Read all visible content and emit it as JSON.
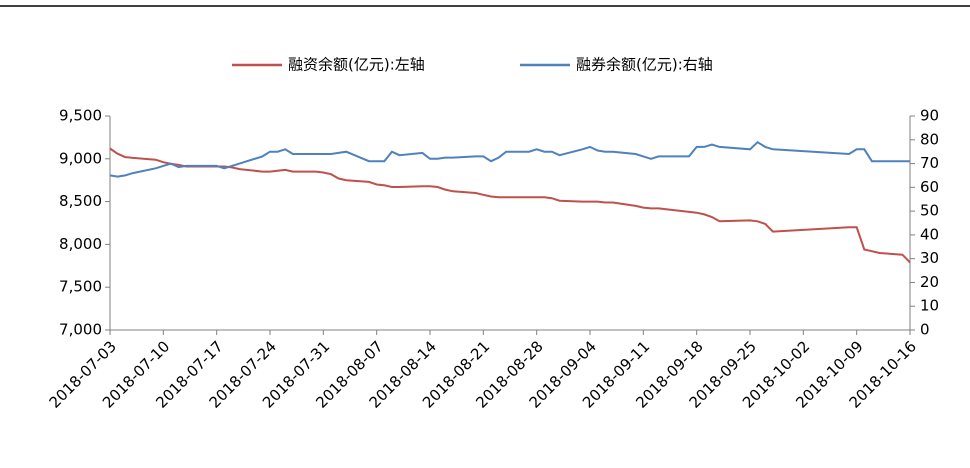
{
  "chart_data": {
    "type": "line",
    "x": [
      "2018-07-03",
      "2018-07-04",
      "2018-07-05",
      "2018-07-06",
      "2018-07-09",
      "2018-07-10",
      "2018-07-11",
      "2018-07-12",
      "2018-07-13",
      "2018-07-16",
      "2018-07-17",
      "2018-07-18",
      "2018-07-19",
      "2018-07-20",
      "2018-07-23",
      "2018-07-24",
      "2018-07-25",
      "2018-07-26",
      "2018-07-27",
      "2018-07-30",
      "2018-07-31",
      "2018-08-01",
      "2018-08-02",
      "2018-08-03",
      "2018-08-06",
      "2018-08-07",
      "2018-08-08",
      "2018-08-09",
      "2018-08-10",
      "2018-08-13",
      "2018-08-14",
      "2018-08-15",
      "2018-08-16",
      "2018-08-17",
      "2018-08-20",
      "2018-08-21",
      "2018-08-22",
      "2018-08-23",
      "2018-08-24",
      "2018-08-27",
      "2018-08-28",
      "2018-08-29",
      "2018-08-30",
      "2018-08-31",
      "2018-09-03",
      "2018-09-04",
      "2018-09-05",
      "2018-09-06",
      "2018-09-07",
      "2018-09-10",
      "2018-09-11",
      "2018-09-12",
      "2018-09-13",
      "2018-09-14",
      "2018-09-17",
      "2018-09-18",
      "2018-09-19",
      "2018-09-20",
      "2018-09-21",
      "2018-09-25",
      "2018-09-26",
      "2018-09-27",
      "2018-09-28",
      "2018-10-08",
      "2018-10-09",
      "2018-10-10",
      "2018-10-11",
      "2018-10-12",
      "2018-10-15",
      "2018-10-16"
    ],
    "series": [
      {
        "name": "融资余额(亿元):左轴",
        "color": "#c0504d",
        "axis": "y",
        "values": [
          9120,
          9060,
          9020,
          9010,
          8990,
          8960,
          8940,
          8930,
          8910,
          8910,
          8910,
          8910,
          8900,
          8880,
          8850,
          8850,
          8860,
          8870,
          8850,
          8850,
          8840,
          8820,
          8770,
          8750,
          8730,
          8700,
          8690,
          8670,
          8670,
          8680,
          8680,
          8670,
          8640,
          8620,
          8600,
          8580,
          8560,
          8550,
          8550,
          8550,
          8550,
          8550,
          8540,
          8510,
          8500,
          8500,
          8500,
          8490,
          8490,
          8450,
          8430,
          8420,
          8420,
          8410,
          8380,
          8370,
          8350,
          8320,
          8270,
          8280,
          8270,
          8240,
          8150,
          8200,
          8200,
          7940,
          7920,
          7900,
          7880,
          7790
        ]
      },
      {
        "name": "融券余额(亿元):右轴",
        "color": "#4f81bd",
        "axis": "y2",
        "values": [
          65,
          64.5,
          65,
          66,
          68,
          69,
          70,
          68.5,
          69,
          69,
          69,
          68,
          69,
          70,
          73,
          75,
          75,
          76,
          74,
          74,
          74,
          74,
          74.5,
          75,
          71,
          71,
          71,
          75,
          73.5,
          74.5,
          72,
          72,
          72.5,
          72.5,
          73,
          73,
          71,
          72.5,
          75,
          75,
          76,
          75,
          75,
          73.5,
          76,
          77,
          75.5,
          75,
          75,
          74,
          73,
          72,
          73,
          73,
          73,
          77,
          77,
          78,
          77,
          76,
          79,
          77,
          76,
          74,
          76,
          76,
          71,
          71,
          71,
          71
        ]
      }
    ],
    "xlim": [
      "2018-07-03",
      "2018-10-16"
    ],
    "xticks": [
      "2018-07-03",
      "2018-07-10",
      "2018-07-17",
      "2018-07-24",
      "2018-07-31",
      "2018-08-07",
      "2018-08-14",
      "2018-08-21",
      "2018-08-28",
      "2018-09-04",
      "2018-09-11",
      "2018-09-18",
      "2018-09-25",
      "2018-10-02",
      "2018-10-09",
      "2018-10-16"
    ],
    "ylim": [
      7000,
      9500
    ],
    "yticks": [
      {
        "value": 7000,
        "label": "7,000"
      },
      {
        "value": 7500,
        "label": "7,500"
      },
      {
        "value": 8000,
        "label": "8,000"
      },
      {
        "value": 8500,
        "label": "8,500"
      },
      {
        "value": 9000,
        "label": "9,000"
      },
      {
        "value": 9500,
        "label": "9,500"
      }
    ],
    "y2lim": [
      0,
      90
    ],
    "y2ticks": [
      0,
      10,
      20,
      30,
      40,
      50,
      60,
      70,
      80,
      90
    ],
    "legend": "top"
  }
}
